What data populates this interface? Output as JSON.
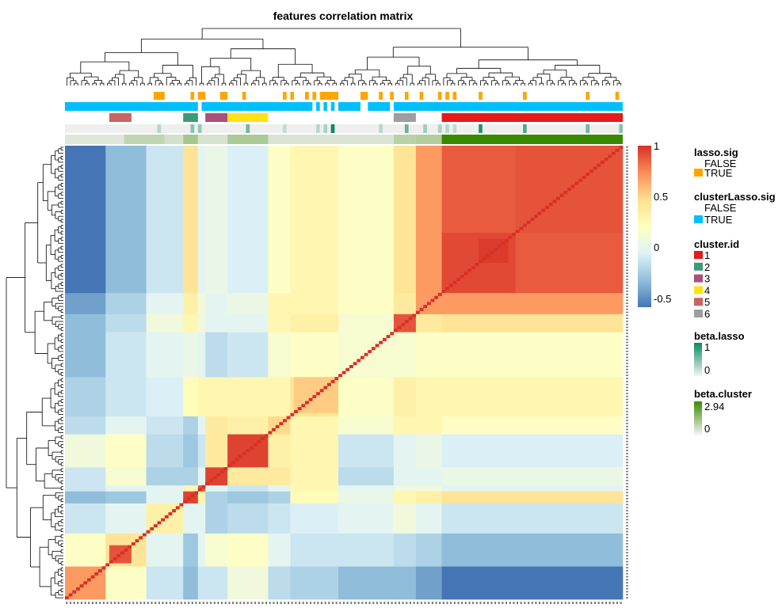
{
  "chart_data": {
    "type": "heatmap",
    "title": "features correlation matrix",
    "n_variables": 151,
    "variable_groups": [
      {
        "start": 0,
        "end": 11
      },
      {
        "start": 11,
        "end": 22
      },
      {
        "start": 22,
        "end": 32
      },
      {
        "start": 32,
        "end": 36
      },
      {
        "start": 36,
        "end": 38
      },
      {
        "start": 38,
        "end": 44
      },
      {
        "start": 44,
        "end": 55
      },
      {
        "start": 55,
        "end": 61
      },
      {
        "start": 61,
        "end": 74
      },
      {
        "start": 74,
        "end": 89
      },
      {
        "start": 89,
        "end": 95
      },
      {
        "start": 95,
        "end": 102
      },
      {
        "start": 102,
        "end": 151
      }
    ],
    "group_correlation": [
      [
        0.7,
        0.2,
        -0.1,
        -0.3,
        -0.1,
        -0.1,
        0.1,
        -0.15,
        -0.2,
        -0.3,
        -0.3,
        -0.4,
        -0.55
      ],
      [
        0.2,
        0.45,
        0.0,
        -0.25,
        0.0,
        0.15,
        0.2,
        0.0,
        -0.1,
        -0.1,
        -0.15,
        -0.2,
        -0.3
      ],
      [
        -0.1,
        0.0,
        0.35,
        0.0,
        0.0,
        -0.2,
        -0.15,
        -0.1,
        -0.05,
        0.0,
        0.1,
        0.0,
        -0.1
      ],
      [
        -0.3,
        -0.25,
        0.0,
        0.95,
        0.3,
        -0.2,
        -0.25,
        -0.2,
        0.25,
        0.05,
        0.3,
        0.35,
        0.45
      ],
      [
        -0.1,
        0.0,
        0.0,
        0.3,
        0.9,
        0.0,
        -0.1,
        0.0,
        0.3,
        0.0,
        0.1,
        0.1,
        0.0
      ],
      [
        -0.1,
        0.15,
        -0.2,
        -0.2,
        0.0,
        0.95,
        0.4,
        0.4,
        0.3,
        -0.15,
        0.0,
        0.0,
        0.05
      ],
      [
        0.1,
        0.2,
        -0.15,
        -0.25,
        -0.1,
        0.4,
        0.95,
        0.35,
        0.3,
        -0.1,
        0.0,
        0.05,
        -0.05
      ],
      [
        -0.15,
        0.0,
        -0.1,
        -0.2,
        0.0,
        0.4,
        0.35,
        0.5,
        0.3,
        0.15,
        0.3,
        0.3,
        0.2
      ],
      [
        -0.2,
        -0.1,
        -0.05,
        0.25,
        0.3,
        0.3,
        0.3,
        0.3,
        0.45,
        0.2,
        0.35,
        0.3,
        0.3
      ],
      [
        -0.3,
        -0.1,
        0.0,
        0.05,
        0.0,
        -0.15,
        -0.1,
        0.15,
        0.2,
        0.15,
        0.15,
        0.2,
        0.2
      ],
      [
        -0.3,
        -0.15,
        0.1,
        0.3,
        0.1,
        0.0,
        0.0,
        0.3,
        0.35,
        0.15,
        0.9,
        0.4,
        0.45
      ],
      [
        -0.4,
        -0.2,
        0.0,
        0.35,
        0.1,
        0.0,
        0.05,
        0.3,
        0.3,
        0.2,
        0.4,
        0.7,
        0.7
      ],
      [
        -0.55,
        -0.3,
        -0.1,
        0.45,
        0.0,
        0.05,
        -0.05,
        0.2,
        0.3,
        0.2,
        0.45,
        0.7,
        0.88
      ]
    ],
    "strong_blocks": [
      {
        "start": 12,
        "end": 18,
        "r": 0.9
      },
      {
        "start": 62,
        "end": 74,
        "r": 0.55
      },
      {
        "start": 102,
        "end": 122,
        "r": 0.93
      },
      {
        "start": 112,
        "end": 120,
        "r": 0.97
      },
      {
        "start": 122,
        "end": 151,
        "r": 0.9
      }
    ],
    "color_scale": {
      "range": [
        -0.55,
        1
      ],
      "ticks": [
        "1",
        "0.5",
        "0",
        "-0.5"
      ],
      "tick_values": [
        1,
        0.5,
        0,
        -0.5
      ],
      "colors": [
        "#4575B4",
        "#91BFDB",
        "#E0F3F8",
        "#FFFFBF",
        "#FEE090",
        "#FC8D59",
        "#D73027"
      ]
    },
    "annotations": {
      "lasso_sig_true": [
        [
          24,
          27
        ],
        [
          34,
          35
        ],
        [
          36,
          38
        ],
        [
          42,
          44
        ],
        [
          48,
          49
        ],
        [
          59,
          60
        ],
        [
          61,
          62
        ],
        [
          65,
          66
        ],
        [
          67,
          68
        ],
        [
          69,
          74
        ],
        [
          80,
          82
        ],
        [
          85,
          86
        ],
        [
          88,
          89
        ],
        [
          92,
          93
        ],
        [
          96,
          97
        ],
        [
          101,
          102
        ],
        [
          103,
          104
        ],
        [
          105,
          106
        ],
        [
          112,
          113
        ],
        [
          124,
          125
        ],
        [
          141,
          142
        ],
        [
          149,
          150
        ]
      ],
      "clusterLasso_sig_true": [
        [
          0,
          36
        ],
        [
          37,
          67
        ],
        [
          68,
          69
        ],
        [
          70,
          71
        ],
        [
          72,
          73
        ],
        [
          74,
          80
        ],
        [
          82,
          88
        ],
        [
          89,
          151
        ]
      ],
      "cluster_id": [
        {
          "id": "5",
          "start": 12,
          "end": 18
        },
        {
          "id": "2",
          "start": 32,
          "end": 36
        },
        {
          "id": "3",
          "start": 38,
          "end": 44
        },
        {
          "id": "4",
          "start": 44,
          "end": 55
        },
        {
          "id": "6",
          "start": 89,
          "end": 95
        },
        {
          "id": "1",
          "start": 102,
          "end": 151
        }
      ],
      "beta_lasso": [
        [
          25,
          0.25
        ],
        [
          34,
          0.45
        ],
        [
          36,
          0.4
        ],
        [
          49,
          0.55
        ],
        [
          59,
          0.2
        ],
        [
          68,
          0.25
        ],
        [
          70,
          0.3
        ],
        [
          72,
          1
        ],
        [
          85,
          0.25
        ],
        [
          92,
          0.6
        ],
        [
          97,
          0.35
        ],
        [
          101,
          0.3
        ],
        [
          103,
          0.25
        ],
        [
          105,
          0.2
        ],
        [
          112,
          0.9
        ],
        [
          124,
          0.7
        ],
        [
          141,
          0.55
        ],
        [
          150,
          0.45
        ]
      ],
      "beta_cluster": [
        {
          "start": 0,
          "end": 16,
          "value": 0.12
        },
        {
          "start": 16,
          "end": 27,
          "value": 0.35
        },
        {
          "start": 27,
          "end": 32,
          "value": 0.2
        },
        {
          "start": 32,
          "end": 36,
          "value": 0.55
        },
        {
          "start": 36,
          "end": 44,
          "value": 0.18
        },
        {
          "start": 44,
          "end": 55,
          "value": 0.5
        },
        {
          "start": 55,
          "end": 89,
          "value": 0.15
        },
        {
          "start": 89,
          "end": 95,
          "value": 0.4
        },
        {
          "start": 95,
          "end": 102,
          "value": 0.45
        },
        {
          "start": 102,
          "end": 151,
          "value": 2.94
        }
      ]
    }
  },
  "legend": {
    "lasso_sig": {
      "title": "lasso.sig",
      "false_label": "FALSE",
      "true_label": "TRUE",
      "true_color": "#FFA500"
    },
    "clusterLasso_sig": {
      "title": "clusterLasso.sig",
      "false_label": "FALSE",
      "true_label": "TRUE",
      "true_color": "#00BFFF"
    },
    "cluster_id": {
      "title": "cluster.id",
      "items": [
        {
          "label": "1",
          "color": "#E41A1C"
        },
        {
          "label": "2",
          "color": "#3E9A76"
        },
        {
          "label": "3",
          "color": "#A8507E"
        },
        {
          "label": "4",
          "color": "#FFE118"
        },
        {
          "label": "5",
          "color": "#C86462"
        },
        {
          "label": "6",
          "color": "#9E9E9E"
        }
      ]
    },
    "beta_lasso": {
      "title": "beta.lasso",
      "max_label": "1",
      "min_label": "0",
      "color": "#0B8A5E"
    },
    "beta_cluster": {
      "title": "beta.cluster",
      "max_label": "2.94",
      "min_label": "0",
      "color": "#3A8A00"
    }
  }
}
